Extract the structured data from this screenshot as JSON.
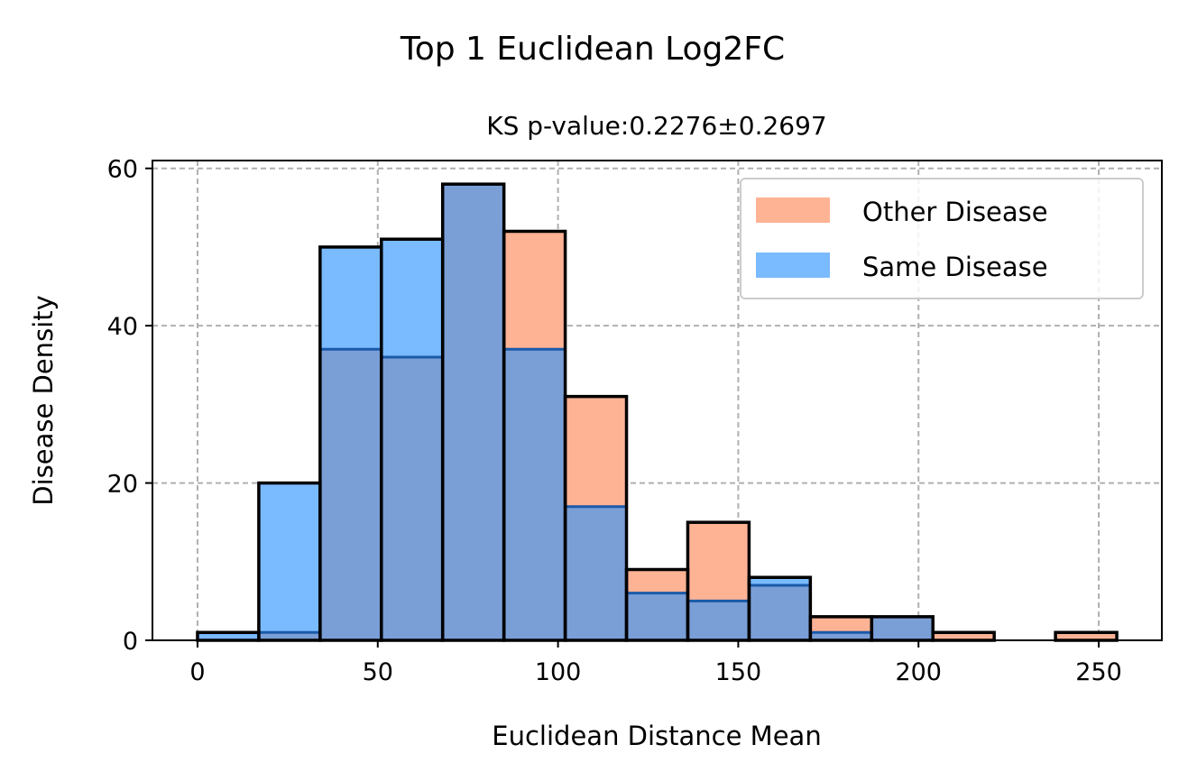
{
  "chart_data": {
    "type": "bar",
    "title": "Top 1 Euclidean Log2FC",
    "subtitle": "KS p-value:0.2276±0.2697",
    "xlabel": "Euclidean Distance Mean",
    "ylabel": "Disease Density",
    "xlim": [
      -12.5,
      267.5
    ],
    "ylim": [
      0,
      61
    ],
    "xticks": [
      0,
      50,
      100,
      150,
      200,
      250
    ],
    "yticks": [
      0,
      20,
      40,
      60
    ],
    "grid": true,
    "legend_position": "top-right",
    "bin_edges": [
      0,
      17,
      34,
      51,
      68,
      85,
      102,
      119,
      136,
      153,
      170,
      187,
      204,
      221,
      238,
      255
    ],
    "series": [
      {
        "name": "Other Disease",
        "color": "#FFB395",
        "values": [
          0,
          1,
          37,
          36,
          58,
          52,
          31,
          9,
          15,
          7,
          3,
          3,
          1,
          0,
          1
        ]
      },
      {
        "name": "Same Disease",
        "color": "#7ABAFF",
        "values": [
          1,
          20,
          50,
          51,
          58,
          37,
          17,
          6,
          5,
          8,
          1,
          3,
          0,
          0,
          0
        ]
      }
    ],
    "overlap_color": "#7A9ED6"
  }
}
